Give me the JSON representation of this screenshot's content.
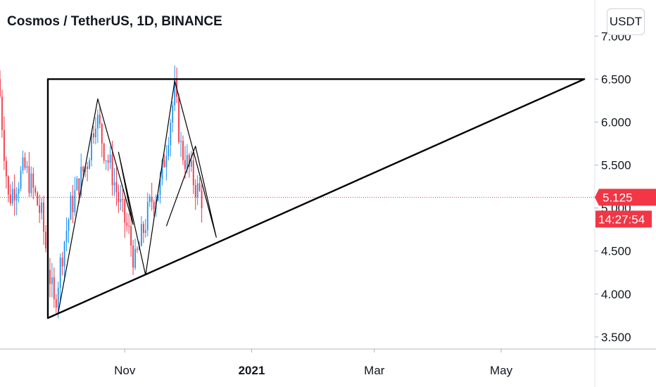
{
  "header": {
    "title": "Cosmos / TetherUS, 1D, BINANCE",
    "currency_button": "USDT"
  },
  "price_tag": {
    "label": "5.125",
    "value": 5.125,
    "color": "#f23645"
  },
  "countdown_tag": {
    "label": "14:27:54",
    "color": "#f23645"
  },
  "colors": {
    "up": "#2196f3",
    "down": "#f23645",
    "drawing": "#000000",
    "axis_text": "#131722"
  },
  "chart_data": {
    "type": "candlestick",
    "symbol": "ATOM/USDT",
    "interval": "1D",
    "exchange": "BINANCE",
    "y_axis": {
      "ticks": [
        3.5,
        4.0,
        4.5,
        5.0,
        5.5,
        6.0,
        6.5,
        7.0
      ],
      "tick_labels": [
        "3.500",
        "4.000",
        "4.500",
        "5.000",
        "5.500",
        "6.000",
        "6.500",
        "7.000"
      ],
      "range": [
        3.36,
        7.42
      ]
    },
    "x_axis": {
      "tick_labels": [
        {
          "label": "Nov",
          "date": "2020-11-01",
          "bold": false
        },
        {
          "label": "2021",
          "date": "2021-01-01",
          "bold": true
        },
        {
          "label": "Mar",
          "date": "2021-03-01",
          "bold": false
        },
        {
          "label": "May",
          "date": "2021-05-01",
          "bold": false
        }
      ],
      "range": [
        "2020-09-02",
        "2021-06-15"
      ]
    },
    "closes": [
      {
        "date": "2020-09-02",
        "close": 6.3
      },
      {
        "date": "2020-09-06",
        "close": 5.1
      },
      {
        "date": "2020-09-10",
        "close": 5.3
      },
      {
        "date": "2020-09-14",
        "close": 5.45
      },
      {
        "date": "2020-09-18",
        "close": 5.2
      },
      {
        "date": "2020-09-22",
        "close": 4.9
      },
      {
        "date": "2020-09-26",
        "close": 4.2
      },
      {
        "date": "2020-09-28",
        "close": 3.85
      },
      {
        "date": "2020-10-02",
        "close": 4.5
      },
      {
        "date": "2020-10-06",
        "close": 5.0
      },
      {
        "date": "2020-10-10",
        "close": 5.3
      },
      {
        "date": "2020-10-14",
        "close": 5.55
      },
      {
        "date": "2020-10-18",
        "close": 6.1
      },
      {
        "date": "2020-10-22",
        "close": 5.7
      },
      {
        "date": "2020-10-26",
        "close": 5.4
      },
      {
        "date": "2020-10-30",
        "close": 5.0
      },
      {
        "date": "2020-11-03",
        "close": 4.7
      },
      {
        "date": "2020-11-06",
        "close": 4.35
      },
      {
        "date": "2020-11-10",
        "close": 4.75
      },
      {
        "date": "2020-11-14",
        "close": 5.1
      },
      {
        "date": "2020-11-18",
        "close": 5.25
      },
      {
        "date": "2020-11-22",
        "close": 5.9
      },
      {
        "date": "2020-11-25",
        "close": 6.35
      },
      {
        "date": "2020-11-28",
        "close": 5.7
      },
      {
        "date": "2020-12-02",
        "close": 5.45
      },
      {
        "date": "2020-12-06",
        "close": 5.2
      },
      {
        "date": "2020-12-08",
        "close": 5.125
      }
    ],
    "drawings": [
      {
        "kind": "triangle",
        "label": "ascending triangle",
        "points": [
          {
            "date": "2020-09-25",
            "price": 6.5
          },
          {
            "date": "2021-06-10",
            "price": 6.5
          },
          {
            "date": "2020-09-25",
            "price": 3.72
          }
        ]
      },
      {
        "kind": "polyline",
        "label": "zigzag",
        "points": [
          {
            "date": "2020-09-30",
            "price": 3.78
          },
          {
            "date": "2020-10-19",
            "price": 6.27
          },
          {
            "date": "2020-11-05",
            "price": 4.81
          },
          {
            "date": "2020-10-29",
            "price": 5.65
          },
          {
            "date": "2020-11-11",
            "price": 4.22
          },
          {
            "date": "2020-11-25",
            "price": 6.48
          },
          {
            "date": "2020-12-15",
            "price": 4.66
          },
          {
            "date": "2020-12-05",
            "price": 5.72
          },
          {
            "date": "2020-11-21",
            "price": 4.79
          }
        ]
      }
    ]
  }
}
